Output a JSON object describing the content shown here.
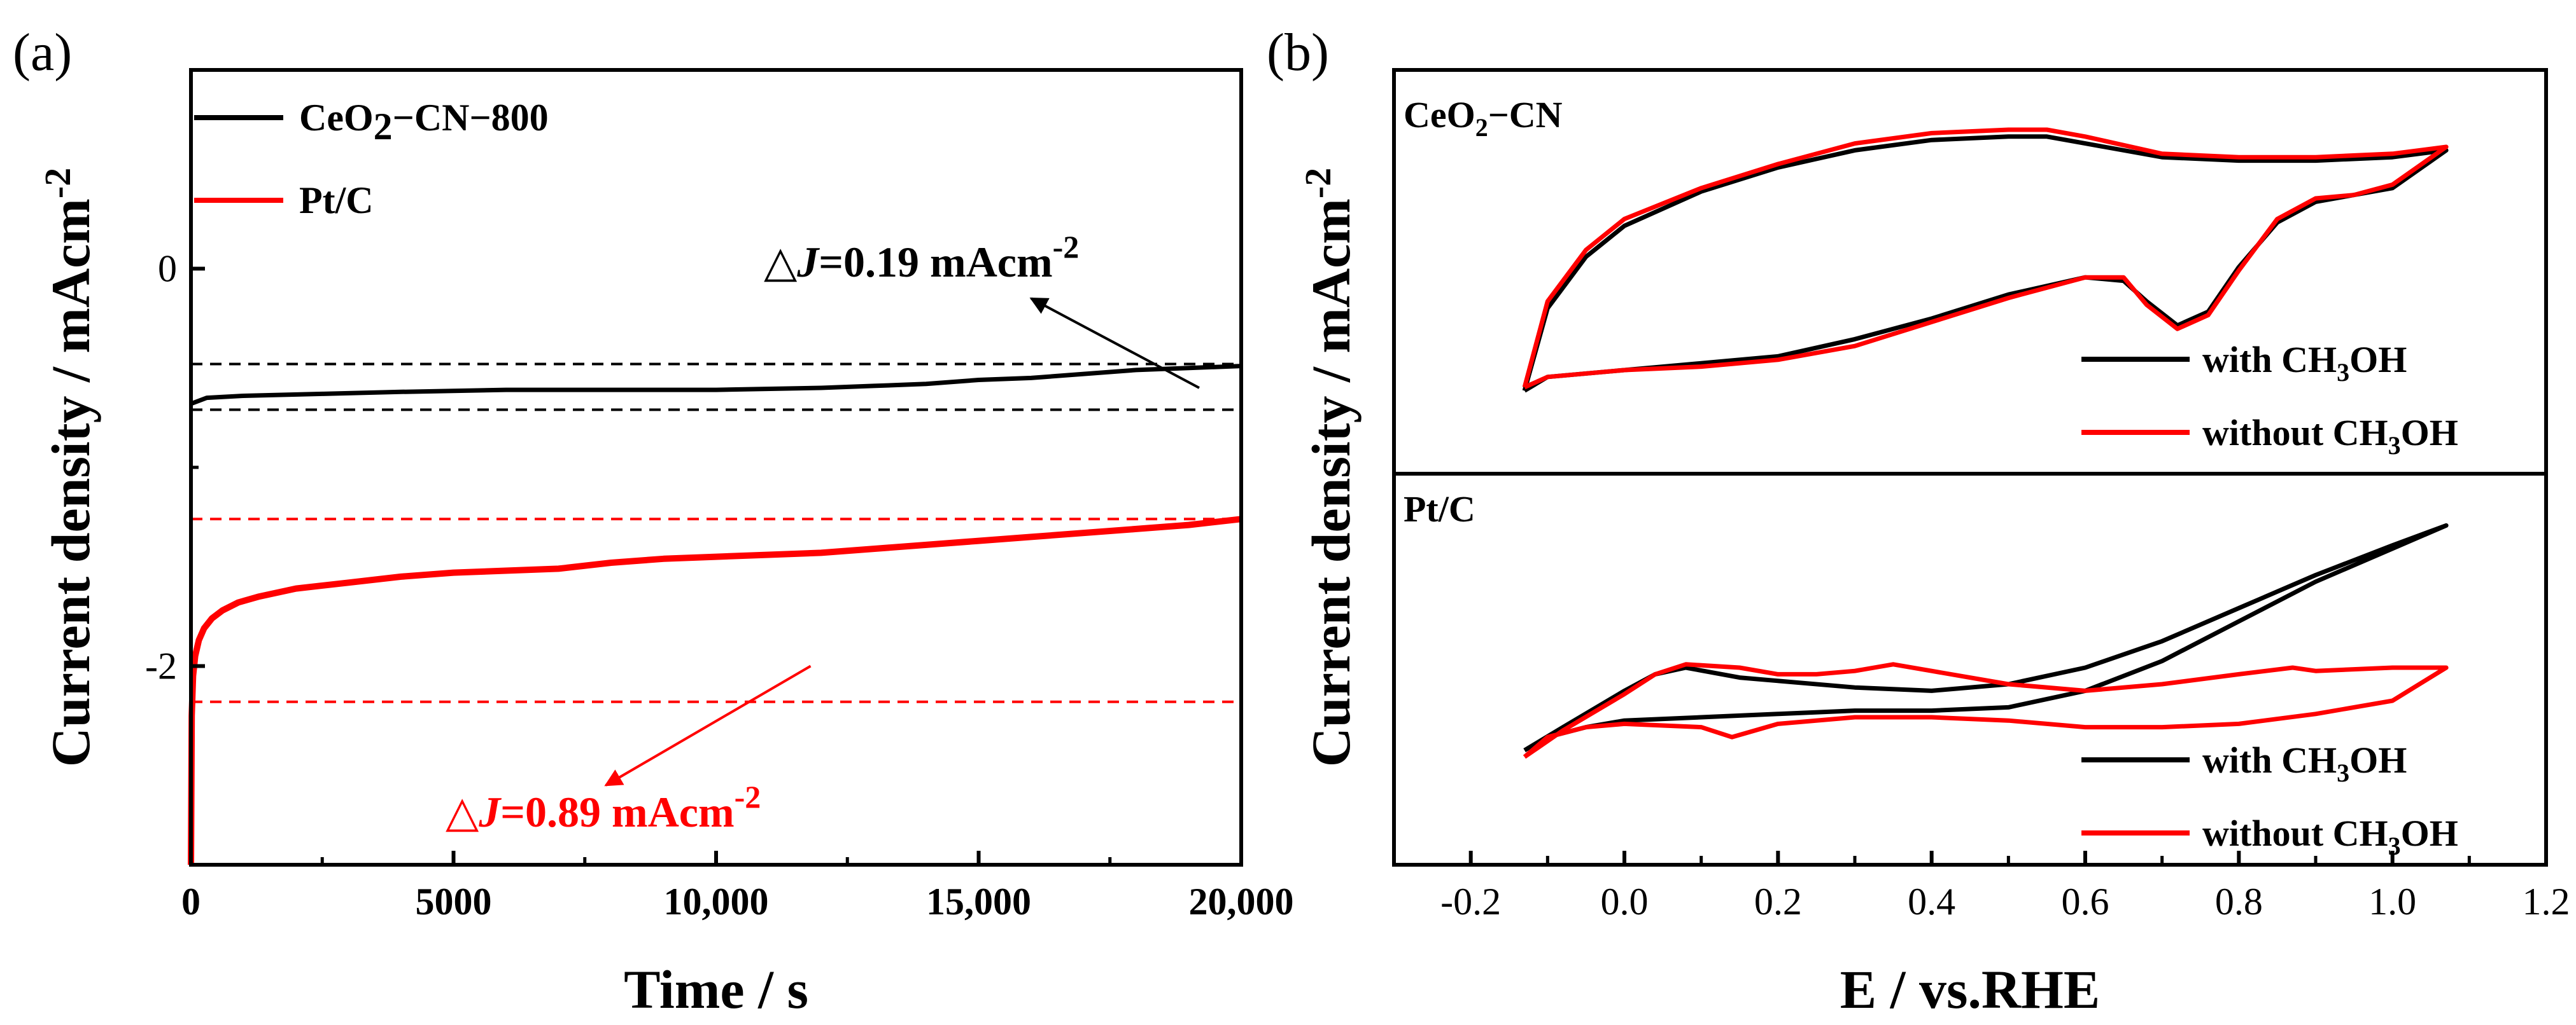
{
  "chart_data": [
    {
      "panel_label": "(a)",
      "type": "line",
      "xlabel": "Time / s",
      "ylabel": "Current density / mAcm",
      "ylabel_sup": "-2",
      "xlim": [
        0,
        20000
      ],
      "ylim": [
        -3.0,
        1.0
      ],
      "x_ticks": [
        {
          "value": 0,
          "label": "0"
        },
        {
          "value": 5000,
          "label": "5000"
        },
        {
          "value": 10000,
          "label": "10,000"
        },
        {
          "value": 15000,
          "label": "15,000"
        },
        {
          "value": 20000,
          "label": "20,000"
        }
      ],
      "y_ticks": [
        {
          "value": 0,
          "label": "0"
        },
        {
          "value": -2,
          "label": "-2"
        }
      ],
      "legend": [
        {
          "name": "CeO2-CN-800",
          "text": "CeO",
          "sub": "2",
          "rest": "−CN−800",
          "color": "#000000"
        },
        {
          "name": "Pt/C",
          "text": "Pt/C",
          "color": "#ff0000"
        }
      ],
      "series": [
        {
          "name": "CeO2-CN-800",
          "color": "#000000",
          "x": [
            0,
            300,
            1000,
            2500,
            4000,
            6000,
            8000,
            10000,
            12000,
            13000,
            14000,
            15000,
            16000,
            17000,
            18000,
            19000,
            20000
          ],
          "y": [
            -0.68,
            -0.65,
            -0.64,
            -0.63,
            -0.62,
            -0.61,
            -0.61,
            -0.61,
            -0.6,
            -0.59,
            -0.58,
            -0.56,
            -0.55,
            -0.53,
            -0.51,
            -0.5,
            -0.49
          ]
        },
        {
          "name": "Pt/C",
          "color": "#ff0000",
          "x": [
            0,
            15,
            40,
            80,
            150,
            250,
            400,
            600,
            900,
            1300,
            2000,
            3000,
            4000,
            5000,
            6000,
            7000,
            8000,
            9000,
            10000,
            11000,
            12000,
            13000,
            14000,
            15000,
            16000,
            17000,
            18000,
            19000,
            20000
          ],
          "y": [
            -3.0,
            -2.25,
            -2.05,
            -1.95,
            -1.87,
            -1.81,
            -1.76,
            -1.72,
            -1.68,
            -1.65,
            -1.61,
            -1.58,
            -1.55,
            -1.53,
            -1.52,
            -1.51,
            -1.48,
            -1.46,
            -1.45,
            -1.44,
            -1.43,
            -1.41,
            -1.39,
            -1.37,
            -1.35,
            -1.33,
            -1.31,
            -1.29,
            -1.26
          ]
        }
      ],
      "ref_lines": [
        {
          "y": -0.48,
          "color": "#000000"
        },
        {
          "y": -0.71,
          "color": "#000000"
        },
        {
          "y": -1.26,
          "color": "#ff0000"
        },
        {
          "y": -2.18,
          "color": "#ff0000"
        }
      ],
      "annotations": [
        {
          "name": "delta-j-black",
          "prefix": "△",
          "italic": "J",
          "text": "=0.19 mAcm",
          "sup": "-2",
          "color": "#000000",
          "arrow_from": [
            19200,
            -0.6
          ],
          "arrow_to": [
            16000,
            -0.15
          ]
        },
        {
          "name": "delta-j-red",
          "prefix": "△",
          "italic": "J",
          "text": "=0.89 mAcm",
          "sup": "-2",
          "color": "#ff0000",
          "arrow_from": [
            11800,
            -2.0
          ],
          "arrow_to": [
            7900,
            -2.6
          ]
        }
      ]
    },
    {
      "panel_label": "(b)",
      "type": "line",
      "xlabel": "E / vs.RHE",
      "ylabel": "Current density / mAcm",
      "ylabel_sup": "-2",
      "xlim": [
        -0.3,
        1.2
      ],
      "x_ticks": [
        {
          "value": -0.2,
          "label": "-0.2"
        },
        {
          "value": 0.0,
          "label": "0.0"
        },
        {
          "value": 0.2,
          "label": "0.2"
        },
        {
          "value": 0.4,
          "label": "0.4"
        },
        {
          "value": 0.6,
          "label": "0.6"
        },
        {
          "value": 0.8,
          "label": "0.8"
        },
        {
          "value": 1.0,
          "label": "1.0"
        },
        {
          "value": 1.2,
          "label": "1.2"
        }
      ],
      "y_ticks_shown": false,
      "subpanels": [
        {
          "title": "CeO2-CN",
          "title_text": "CeO",
          "title_sub": "2",
          "title_rest": "−CN",
          "ylim": [
            0,
            1
          ],
          "legend": [
            {
              "label": "with CH",
              "sub": "3",
              "rest": "OH",
              "color": "#000000"
            },
            {
              "label": "without CH",
              "sub": "3",
              "rest": "OH",
              "color": "#ff0000"
            }
          ],
          "series": [
            {
              "name": "with CH3OH",
              "color": "#000000",
              "x": [
                -0.13,
                -0.1,
                -0.05,
                0.0,
                0.1,
                0.2,
                0.3,
                0.4,
                0.5,
                0.55,
                0.6,
                0.7,
                0.8,
                0.9,
                1.0,
                1.07,
                1.07,
                1.0,
                0.95,
                0.9,
                0.85,
                0.8,
                0.76,
                0.72,
                0.68,
                0.65,
                0.6,
                0.5,
                0.4,
                0.3,
                0.2,
                0.1,
                0.0,
                -0.1,
                -0.13
              ],
              "y": [
                0.14,
                0.38,
                0.53,
                0.62,
                0.72,
                0.79,
                0.84,
                0.87,
                0.88,
                0.88,
                0.86,
                0.82,
                0.81,
                0.81,
                0.82,
                0.84,
                0.84,
                0.73,
                0.71,
                0.69,
                0.63,
                0.5,
                0.37,
                0.33,
                0.4,
                0.46,
                0.47,
                0.42,
                0.35,
                0.29,
                0.24,
                0.22,
                0.2,
                0.18,
                0.14
              ]
            },
            {
              "name": "without CH3OH",
              "color": "#ff0000",
              "x": [
                -0.13,
                -0.1,
                -0.05,
                0.0,
                0.1,
                0.2,
                0.3,
                0.4,
                0.5,
                0.55,
                0.6,
                0.7,
                0.8,
                0.9,
                1.0,
                1.07,
                1.07,
                1.0,
                0.95,
                0.9,
                0.85,
                0.8,
                0.76,
                0.72,
                0.68,
                0.65,
                0.6,
                0.5,
                0.4,
                0.3,
                0.2,
                0.1,
                0.0,
                -0.1,
                -0.13
              ],
              "y": [
                0.15,
                0.4,
                0.55,
                0.64,
                0.73,
                0.8,
                0.86,
                0.89,
                0.9,
                0.9,
                0.88,
                0.83,
                0.82,
                0.82,
                0.83,
                0.85,
                0.85,
                0.74,
                0.71,
                0.7,
                0.64,
                0.49,
                0.36,
                0.32,
                0.39,
                0.47,
                0.47,
                0.41,
                0.34,
                0.27,
                0.23,
                0.21,
                0.2,
                0.18,
                0.15
              ]
            }
          ]
        },
        {
          "title": "Pt/C",
          "title_text": "Pt/C",
          "ylim": [
            0,
            1
          ],
          "legend": [
            {
              "label": "with CH",
              "sub": "3",
              "rest": "OH",
              "color": "#000000"
            },
            {
              "label": "without CH",
              "sub": "3",
              "rest": "OH",
              "color": "#ff0000"
            }
          ],
          "series": [
            {
              "name": "with CH3OH",
              "color": "#000000",
              "x": [
                -0.13,
                -0.08,
                0.0,
                0.04,
                0.08,
                0.15,
                0.2,
                0.3,
                0.4,
                0.5,
                0.6,
                0.7,
                0.8,
                0.9,
                1.0,
                1.07,
                1.0,
                0.9,
                0.8,
                0.7,
                0.6,
                0.5,
                0.4,
                0.3,
                0.2,
                0.1,
                0.0,
                -0.05,
                -0.1,
                -0.13
              ],
              "y": [
                0.25,
                0.32,
                0.43,
                0.48,
                0.5,
                0.47,
                0.46,
                0.44,
                0.43,
                0.45,
                0.5,
                0.58,
                0.68,
                0.78,
                0.87,
                0.93,
                0.86,
                0.76,
                0.64,
                0.52,
                0.43,
                0.38,
                0.37,
                0.37,
                0.36,
                0.35,
                0.34,
                0.32,
                0.29,
                0.25
              ]
            },
            {
              "name": "without CH3OH",
              "color": "#ff0000",
              "x": [
                -0.13,
                -0.08,
                0.0,
                0.04,
                0.08,
                0.15,
                0.2,
                0.25,
                0.3,
                0.35,
                0.4,
                0.5,
                0.6,
                0.7,
                0.8,
                0.87,
                0.9,
                1.0,
                1.07,
                1.07,
                1.0,
                0.9,
                0.8,
                0.7,
                0.6,
                0.5,
                0.4,
                0.3,
                0.2,
                0.14,
                0.1,
                0.0,
                -0.05,
                -0.1,
                -0.13
              ],
              "y": [
                0.23,
                0.31,
                0.42,
                0.48,
                0.51,
                0.5,
                0.48,
                0.48,
                0.49,
                0.51,
                0.49,
                0.45,
                0.43,
                0.45,
                0.48,
                0.5,
                0.49,
                0.5,
                0.5,
                0.5,
                0.4,
                0.36,
                0.33,
                0.32,
                0.32,
                0.34,
                0.35,
                0.35,
                0.33,
                0.29,
                0.32,
                0.33,
                0.32,
                0.29,
                0.23
              ]
            }
          ]
        }
      ]
    }
  ]
}
